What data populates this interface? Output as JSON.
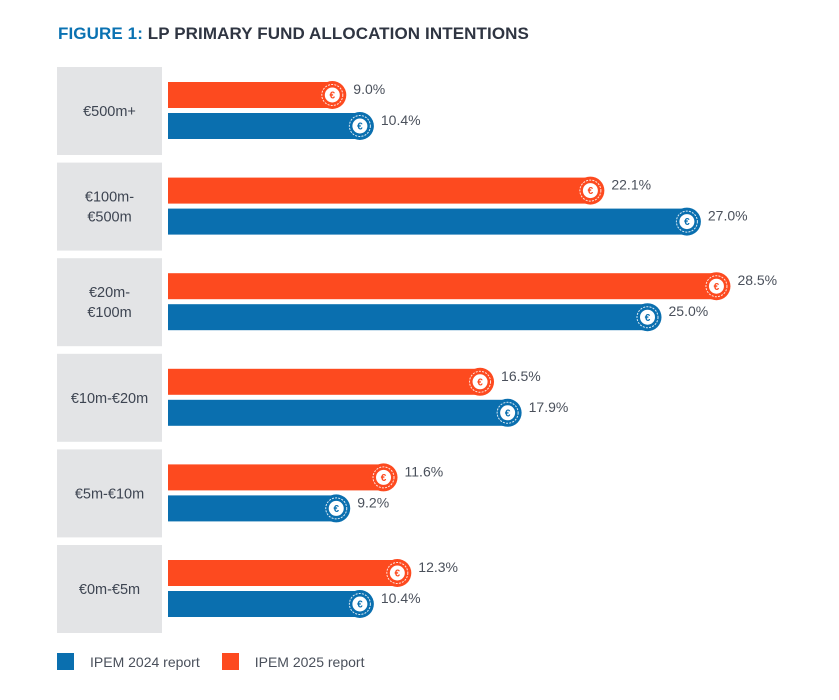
{
  "chart_data": {
    "type": "bar",
    "orientation": "horizontal",
    "title_prefix": "FIGURE 1:",
    "title": "LP PRIMARY FUND ALLOCATION INTENTIONS",
    "categories": [
      "€500m+",
      "€100m-\n€500m",
      "€20m-\n€100m",
      "€10m-€20m",
      "€5m-€10m",
      "€0m-€5m"
    ],
    "series": [
      {
        "name": "IPEM 2025 report",
        "color": "#fd4a1f",
        "values": [
          9.0,
          22.1,
          28.5,
          16.5,
          11.6,
          12.3
        ],
        "labels": [
          "9.0%",
          "22.1%",
          "28.5%",
          "16.5%",
          "11.6%",
          "12.3%"
        ]
      },
      {
        "name": "IPEM 2024 report",
        "color": "#0a6faf",
        "values": [
          10.4,
          27.0,
          25.0,
          17.9,
          9.2,
          10.4
        ],
        "labels": [
          "10.4%",
          "27.0%",
          "25.0%",
          "17.9%",
          "9.2%",
          "10.4%"
        ]
      }
    ],
    "xlim": [
      0,
      30
    ],
    "unit": "%",
    "grid": false,
    "legend": [
      {
        "label": "IPEM 2024 report",
        "color": "#0a6faf"
      },
      {
        "label": "IPEM 2025 report",
        "color": "#fd4a1f"
      }
    ],
    "legend_position": "bottom-left",
    "bar_end_icon": "euro-coin-icon"
  }
}
